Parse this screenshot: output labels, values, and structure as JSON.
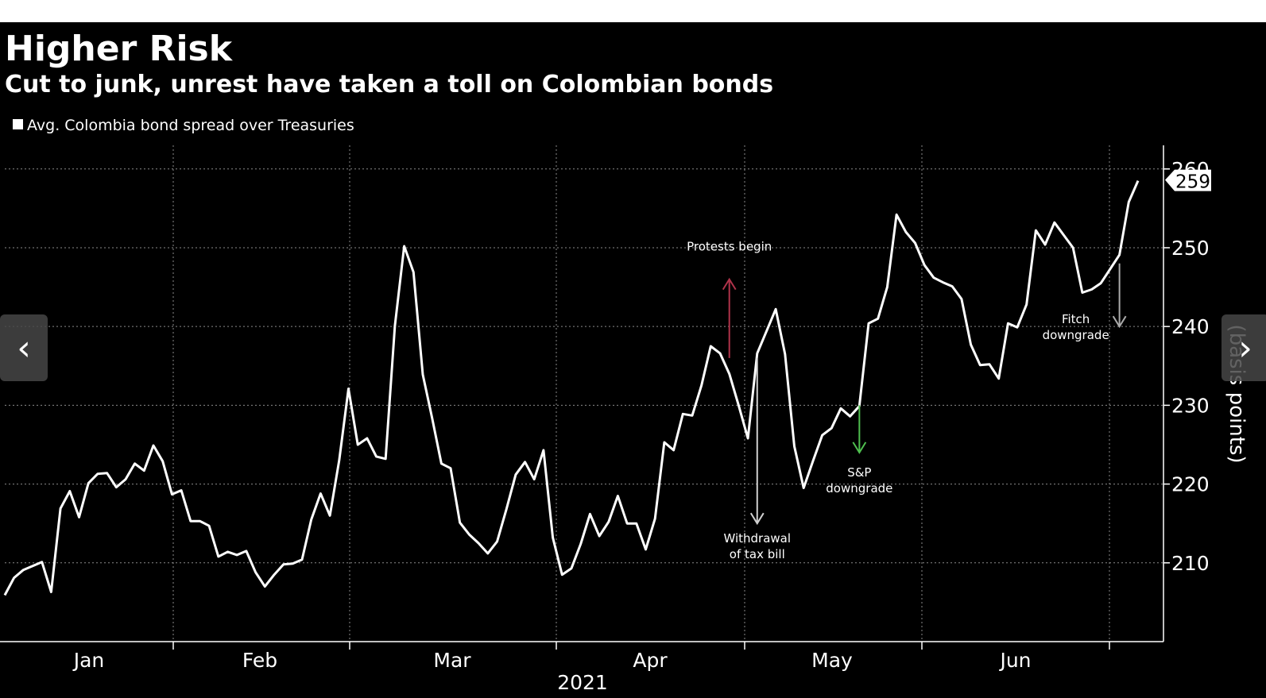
{
  "chart_data": {
    "type": "line",
    "title": "Higher Risk",
    "subtitle": "Cut to junk, unrest have taken a toll on Colombian bonds",
    "ylabel": "(basis points)",
    "xlabel": "2021",
    "ylim": [
      200,
      263
    ],
    "yticks": [
      210,
      220,
      230,
      240,
      250,
      260
    ],
    "grid": true,
    "legend_position": "top-left",
    "month_labels": [
      "Jan",
      "Feb",
      "Mar",
      "Apr",
      "May",
      "Jun"
    ],
    "series": [
      {
        "name": "Avg. Colombia bond spread over Treasuries",
        "color": "#ffffff",
        "values": [
          205.9,
          208.1,
          209.1,
          209.6,
          210.1,
          206.3,
          216.9,
          219.1,
          215.8,
          220.1,
          221.3,
          221.4,
          219.6,
          220.6,
          222.6,
          221.7,
          224.9,
          222.9,
          218.7,
          219.2,
          215.3,
          215.3,
          214.7,
          210.8,
          211.4,
          211.0,
          211.5,
          208.8,
          207.0,
          208.5,
          209.8,
          209.9,
          210.4,
          215.5,
          218.8,
          216.0,
          223.0,
          232.1,
          225.0,
          225.8,
          223.5,
          223.2,
          240.1,
          250.2,
          246.9,
          233.9,
          228.4,
          222.6,
          222.0,
          215.1,
          213.6,
          212.5,
          211.2,
          212.7,
          216.8,
          221.2,
          222.8,
          220.6,
          224.3,
          213.2,
          208.5,
          209.3,
          212.4,
          216.2,
          213.4,
          215.2,
          218.5,
          215.0,
          215.0,
          211.7,
          215.6,
          225.3,
          224.3,
          228.9,
          228.7,
          232.5,
          237.5,
          236.6,
          234.0,
          230.0,
          225.8,
          236.6,
          239.4,
          242.2,
          236.5,
          224.8,
          219.5,
          222.9,
          226.2,
          227.1,
          229.6,
          228.6,
          229.9,
          240.4,
          241.0,
          245.0,
          254.2,
          252.0,
          250.6,
          247.8,
          246.2,
          245.6,
          245.1,
          243.5,
          237.7,
          235.1,
          235.2,
          233.4,
          240.4,
          239.9,
          242.8,
          252.2,
          250.4,
          253.2,
          251.6,
          250.0,
          244.3,
          244.7,
          245.5,
          247.3,
          249.1,
          255.8,
          258.5
        ]
      }
    ],
    "last_value_label": "259",
    "annotations": [
      {
        "text_lines": [
          "Protests begin"
        ],
        "color": "#b0334a",
        "arrow": "up",
        "index": 78,
        "from": 236,
        "to": 246
      },
      {
        "text_lines": [
          "Withdrawal",
          "of tax bill"
        ],
        "color": "#d0d0d0",
        "arrow": "down",
        "index": 81,
        "from": 236,
        "to": 215
      },
      {
        "text_lines": [
          "S&P",
          "downgrade"
        ],
        "color": "#4fbf4f",
        "arrow": "down",
        "index": 92,
        "from": 230,
        "to": 224
      },
      {
        "text_lines": [
          "Fitch",
          "downgrade"
        ],
        "color": "#aaaaaa",
        "arrow": "down",
        "index": 120,
        "from": 248,
        "to": 240
      }
    ]
  },
  "nav": {
    "prev_glyph": "‹",
    "next_glyph": "›"
  }
}
